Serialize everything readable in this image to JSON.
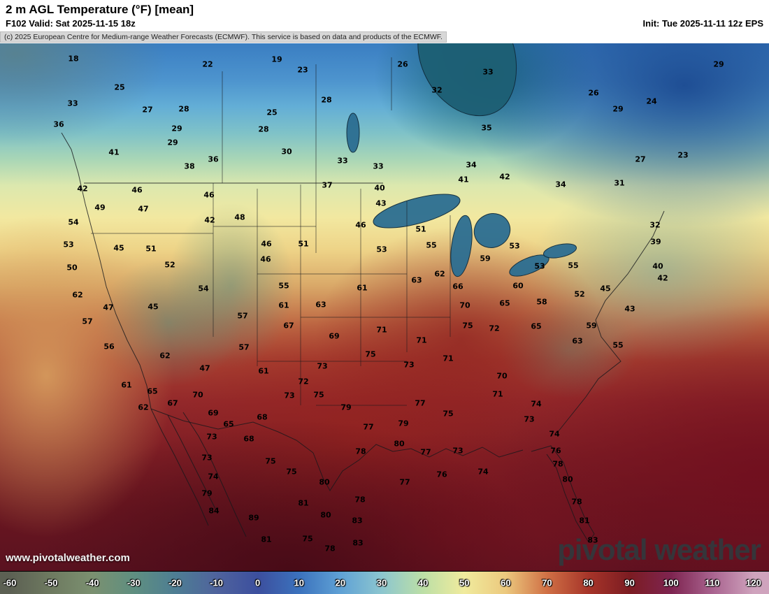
{
  "header": {
    "title": "2 m AGL Temperature (°F) [mean]",
    "valid": "F102 Valid: Sat 2025-11-15 18z",
    "init": "Init: Tue 2025-11-11 12z EPS",
    "copyright": "(c) 2025 European Centre for Medium-range Weather Forecasts (ECMWF). This service is based on data and products of the ECMWF."
  },
  "footer": {
    "watermark": "www.pivotalweather.com",
    "logo": "pivotal weather"
  },
  "colorbar": {
    "units": "°F",
    "ticks": [
      -60,
      -50,
      -40,
      -30,
      -20,
      -10,
      0,
      10,
      20,
      30,
      40,
      50,
      60,
      70,
      80,
      90,
      100,
      110,
      120
    ],
    "stops": [
      {
        "v": -60,
        "c": "#5c6053"
      },
      {
        "v": -50,
        "c": "#6e7a60"
      },
      {
        "v": -40,
        "c": "#7b9070"
      },
      {
        "v": -30,
        "c": "#5f8f80"
      },
      {
        "v": -20,
        "c": "#4e7e93"
      },
      {
        "v": -10,
        "c": "#4f639d"
      },
      {
        "v": 0,
        "c": "#3c4f9e"
      },
      {
        "v": 10,
        "c": "#3b72bd"
      },
      {
        "v": 20,
        "c": "#5fa1d5"
      },
      {
        "v": 30,
        "c": "#8cc6cf"
      },
      {
        "v": 40,
        "c": "#bcdfa6"
      },
      {
        "v": 50,
        "c": "#f0eb9d"
      },
      {
        "v": 60,
        "c": "#ecc97e"
      },
      {
        "v": 70,
        "c": "#d07045"
      },
      {
        "v": 80,
        "c": "#a63429"
      },
      {
        "v": 90,
        "c": "#7c1c22"
      },
      {
        "v": 100,
        "c": "#7e2450"
      },
      {
        "v": 110,
        "c": "#a9638f"
      },
      {
        "v": 120,
        "c": "#cfa3bd"
      }
    ]
  },
  "map": {
    "description": "Mean 2 m temperature (°F) over North America, ECMWF EPS",
    "labels": [
      [
        18,
        105,
        84
      ],
      [
        22,
        297,
        92
      ],
      [
        19,
        396,
        85
      ],
      [
        23,
        433,
        100
      ],
      [
        26,
        576,
        92
      ],
      [
        33,
        698,
        103
      ],
      [
        29,
        1028,
        92
      ],
      [
        25,
        171,
        125
      ],
      [
        32,
        625,
        129
      ],
      [
        26,
        849,
        133
      ],
      [
        24,
        932,
        145
      ],
      [
        29,
        884,
        156
      ],
      [
        33,
        104,
        148
      ],
      [
        27,
        211,
        157
      ],
      [
        28,
        263,
        156
      ],
      [
        28,
        467,
        143
      ],
      [
        25,
        389,
        161
      ],
      [
        36,
        84,
        178
      ],
      [
        29,
        253,
        184
      ],
      [
        28,
        377,
        185
      ],
      [
        35,
        696,
        183
      ],
      [
        29,
        247,
        204
      ],
      [
        30,
        410,
        217
      ],
      [
        41,
        163,
        218
      ],
      [
        36,
        305,
        228
      ],
      [
        38,
        271,
        238
      ],
      [
        33,
        490,
        230
      ],
      [
        33,
        541,
        238
      ],
      [
        34,
        674,
        236
      ],
      [
        27,
        916,
        228
      ],
      [
        23,
        977,
        222
      ],
      [
        42,
        118,
        270
      ],
      [
        46,
        196,
        272
      ],
      [
        46,
        299,
        279
      ],
      [
        37,
        468,
        265
      ],
      [
        40,
        543,
        269
      ],
      [
        41,
        663,
        257
      ],
      [
        42,
        722,
        253
      ],
      [
        34,
        802,
        264
      ],
      [
        31,
        886,
        262
      ],
      [
        49,
        143,
        297
      ],
      [
        47,
        205,
        299
      ],
      [
        42,
        300,
        315
      ],
      [
        48,
        343,
        311
      ],
      [
        43,
        545,
        291
      ],
      [
        46,
        516,
        322
      ],
      [
        51,
        602,
        328
      ],
      [
        54,
        105,
        318
      ],
      [
        32,
        937,
        322
      ],
      [
        39,
        938,
        346
      ],
      [
        53,
        98,
        350
      ],
      [
        45,
        170,
        355
      ],
      [
        51,
        216,
        356
      ],
      [
        46,
        381,
        349
      ],
      [
        51,
        434,
        349
      ],
      [
        53,
        546,
        357
      ],
      [
        55,
        617,
        351
      ],
      [
        59,
        694,
        370
      ],
      [
        53,
        736,
        352
      ],
      [
        50,
        103,
        383
      ],
      [
        52,
        243,
        379
      ],
      [
        46,
        380,
        371
      ],
      [
        53,
        772,
        381
      ],
      [
        55,
        820,
        380
      ],
      [
        40,
        941,
        381
      ],
      [
        42,
        948,
        398
      ],
      [
        62,
        111,
        422
      ],
      [
        47,
        155,
        440
      ],
      [
        45,
        219,
        439
      ],
      [
        54,
        291,
        413
      ],
      [
        55,
        406,
        409
      ],
      [
        61,
        518,
        412
      ],
      [
        63,
        596,
        401
      ],
      [
        62,
        629,
        392
      ],
      [
        66,
        655,
        410
      ],
      [
        60,
        741,
        409
      ],
      [
        52,
        829,
        421
      ],
      [
        45,
        866,
        413
      ],
      [
        61,
        406,
        437
      ],
      [
        63,
        459,
        436
      ],
      [
        70,
        665,
        437
      ],
      [
        65,
        722,
        434
      ],
      [
        58,
        775,
        432
      ],
      [
        43,
        901,
        442
      ],
      [
        57,
        125,
        460
      ],
      [
        57,
        347,
        452
      ],
      [
        67,
        413,
        466
      ],
      [
        71,
        546,
        472
      ],
      [
        75,
        669,
        466
      ],
      [
        72,
        707,
        470
      ],
      [
        65,
        767,
        467
      ],
      [
        59,
        846,
        466
      ],
      [
        56,
        156,
        496
      ],
      [
        57,
        349,
        497
      ],
      [
        69,
        478,
        481
      ],
      [
        71,
        603,
        487
      ],
      [
        63,
        826,
        488
      ],
      [
        55,
        884,
        494
      ],
      [
        62,
        236,
        509
      ],
      [
        47,
        293,
        527
      ],
      [
        61,
        377,
        531
      ],
      [
        73,
        461,
        524
      ],
      [
        75,
        530,
        507
      ],
      [
        73,
        585,
        522
      ],
      [
        71,
        641,
        513
      ],
      [
        70,
        718,
        538
      ],
      [
        61,
        181,
        551
      ],
      [
        65,
        218,
        560
      ],
      [
        70,
        283,
        565
      ],
      [
        72,
        434,
        546
      ],
      [
        73,
        414,
        566
      ],
      [
        75,
        456,
        565
      ],
      [
        71,
        712,
        564
      ],
      [
        62,
        205,
        583
      ],
      [
        67,
        247,
        577
      ],
      [
        69,
        305,
        591
      ],
      [
        68,
        375,
        597
      ],
      [
        79,
        495,
        583
      ],
      [
        77,
        601,
        577
      ],
      [
        75,
        641,
        592
      ],
      [
        74,
        767,
        578
      ],
      [
        65,
        327,
        607
      ],
      [
        77,
        527,
        611
      ],
      [
        79,
        577,
        606
      ],
      [
        73,
        757,
        600
      ],
      [
        74,
        793,
        621
      ],
      [
        73,
        303,
        625
      ],
      [
        68,
        356,
        628
      ],
      [
        80,
        571,
        635
      ],
      [
        77,
        609,
        647
      ],
      [
        73,
        655,
        645
      ],
      [
        78,
        516,
        646
      ],
      [
        76,
        795,
        645
      ],
      [
        73,
        296,
        655
      ],
      [
        75,
        387,
        660
      ],
      [
        75,
        417,
        675
      ],
      [
        80,
        464,
        690
      ],
      [
        77,
        579,
        690
      ],
      [
        76,
        632,
        679
      ],
      [
        74,
        691,
        675
      ],
      [
        78,
        798,
        664
      ],
      [
        74,
        305,
        682
      ],
      [
        79,
        296,
        706
      ],
      [
        80,
        812,
        686
      ],
      [
        84,
        306,
        731
      ],
      [
        81,
        434,
        720
      ],
      [
        78,
        515,
        715
      ],
      [
        78,
        825,
        718
      ],
      [
        89,
        363,
        741
      ],
      [
        80,
        466,
        737
      ],
      [
        83,
        511,
        745
      ],
      [
        81,
        836,
        745
      ],
      [
        81,
        381,
        772
      ],
      [
        75,
        440,
        771
      ],
      [
        78,
        472,
        785
      ],
      [
        83,
        512,
        777
      ],
      [
        83,
        848,
        773
      ]
    ]
  }
}
